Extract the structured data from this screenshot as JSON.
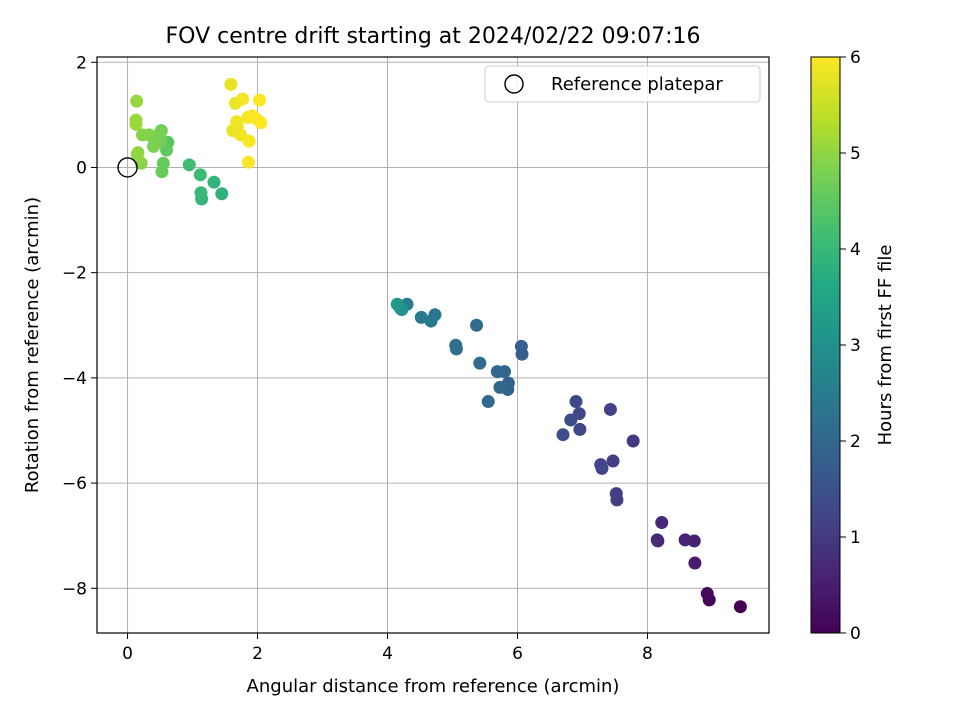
{
  "chart_data": {
    "type": "scatter",
    "title": "FOV centre drift starting at 2024/02/22 09:07:16",
    "xlabel": "Angular distance from reference (arcmin)",
    "ylabel": "Rotation from reference (arcmin)",
    "xlim": [
      -0.47,
      9.87
    ],
    "ylim": [
      -8.85,
      2.1
    ],
    "xticks": [
      0,
      2,
      4,
      6,
      8
    ],
    "xtick_labels": [
      "0",
      "2",
      "4",
      "6",
      "8"
    ],
    "yticks": [
      2,
      0,
      -2,
      -4,
      -6,
      -8
    ],
    "ytick_labels": [
      "2",
      "0",
      "−2",
      "−4",
      "−6",
      "−8"
    ],
    "grid": true,
    "legend": {
      "position": "top-right",
      "entries": [
        "Reference platepar"
      ]
    },
    "reference_point": {
      "name": "Reference platepar",
      "x": 0,
      "y": 0
    },
    "colorbar": {
      "label": "Hours from first FF file",
      "cmap": "viridis",
      "min": 0,
      "max": 6,
      "ticks": [
        0,
        1,
        2,
        3,
        4,
        5,
        6
      ],
      "tick_labels": [
        "0",
        "1",
        "2",
        "3",
        "4",
        "5",
        "6"
      ]
    },
    "colormap_stops": [
      "#440154",
      "#482475",
      "#414487",
      "#355f8d",
      "#2a788e",
      "#21918c",
      "#22a884",
      "#44bf70",
      "#7ad151",
      "#bddf26",
      "#fde725"
    ],
    "series": [
      {
        "x": [
          9.43,
          8.95,
          8.92,
          8.73,
          8.72,
          8.58,
          8.22,
          8.16,
          8.15,
          7.78,
          7.53,
          7.52,
          7.47,
          7.43,
          7.3,
          7.28,
          6.96,
          6.95,
          6.9,
          6.82,
          6.7,
          6.07,
          6.06,
          5.86,
          5.85,
          5.8,
          5.73,
          5.69,
          5.55,
          5.42,
          5.37,
          5.06,
          5.05,
          4.73,
          4.67,
          4.52,
          4.3,
          4.22,
          4.2,
          4.15,
          1.45,
          1.33,
          1.14,
          1.13,
          1.12,
          0.95,
          0.62,
          0.6,
          0.55,
          0.53,
          0.52,
          0.51,
          0.5,
          0.42,
          0.4,
          0.33,
          0.23,
          0.21,
          0.16,
          0.15,
          0.14,
          0.13,
          0.13,
          1.59,
          1.62,
          1.66,
          1.68,
          1.69,
          1.74,
          1.77,
          1.85,
          1.86,
          1.87,
          1.92,
          1.99,
          2.03,
          2.05
        ],
        "y": [
          -8.35,
          -8.22,
          -8.1,
          -7.52,
          -7.1,
          -7.08,
          -6.75,
          -7.1,
          -7.08,
          -5.2,
          -6.32,
          -6.2,
          -5.58,
          -4.6,
          -5.72,
          -5.65,
          -4.98,
          -4.68,
          -4.45,
          -4.8,
          -5.08,
          -3.55,
          -3.4,
          -4.1,
          -4.22,
          -3.88,
          -4.18,
          -3.88,
          -4.45,
          -3.72,
          -3.0,
          -3.45,
          -3.38,
          -2.8,
          -2.92,
          -2.85,
          -2.6,
          -2.7,
          -2.68,
          -2.6,
          -0.5,
          -0.28,
          -0.6,
          -0.48,
          -0.14,
          0.05,
          0.48,
          0.33,
          0.08,
          -0.08,
          0.7,
          0.5,
          0.65,
          0.52,
          0.4,
          0.62,
          0.62,
          0.08,
          0.28,
          0.25,
          1.26,
          0.9,
          0.82,
          1.58,
          0.7,
          1.22,
          0.87,
          0.78,
          0.62,
          1.3,
          0.95,
          0.1,
          0.5,
          0.98,
          0.92,
          1.28,
          0.85
        ],
        "hours": [
          0.0,
          0.05,
          0.13,
          0.45,
          0.55,
          0.6,
          0.62,
          0.66,
          0.7,
          1.02,
          1.05,
          1.1,
          1.1,
          1.15,
          1.2,
          1.24,
          1.26,
          1.3,
          1.34,
          1.4,
          1.44,
          1.78,
          1.8,
          1.85,
          1.9,
          1.95,
          1.98,
          2.0,
          2.05,
          2.08,
          2.12,
          2.15,
          2.2,
          2.35,
          2.4,
          2.45,
          2.55,
          2.9,
          3.0,
          3.2,
          3.85,
          3.9,
          3.95,
          4.0,
          4.05,
          4.15,
          4.4,
          4.5,
          4.55,
          4.6,
          4.65,
          4.7,
          4.75,
          4.78,
          4.8,
          4.85,
          4.9,
          4.95,
          4.98,
          5.0,
          5.05,
          5.1,
          5.1,
          5.8,
          5.8,
          5.82,
          5.85,
          5.86,
          5.88,
          5.9,
          5.92,
          5.94,
          5.95,
          5.96,
          5.98,
          6.0,
          6.0
        ]
      }
    ]
  }
}
